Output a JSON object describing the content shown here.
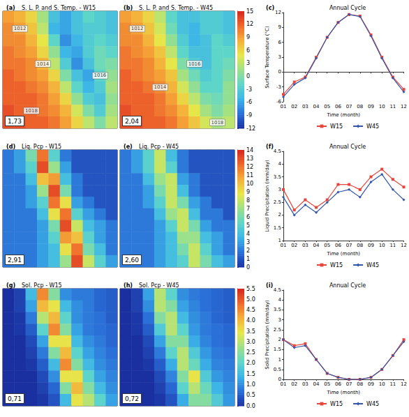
{
  "chart_data": [
    {
      "type": "heatmap",
      "title": "S. L. P. and S. Temp. - W15",
      "panel_label": "(a)",
      "mean_label": "1,73",
      "tick_labels": false,
      "colorbar": {
        "range": [
          -12,
          15
        ],
        "ticks": [
          -12,
          -9,
          -6,
          -3,
          0,
          3,
          6,
          9,
          12,
          15
        ]
      },
      "annotations": [
        {
          "x": 1,
          "y": 1,
          "text": "1012"
        },
        {
          "x": 3,
          "y": 4,
          "text": "1014"
        },
        {
          "x": 8,
          "y": 5,
          "text": "1016"
        },
        {
          "x": 2,
          "y": 8,
          "text": "1018"
        }
      ],
      "cells": [
        [
          9,
          8,
          6,
          2,
          -4,
          -6,
          -4,
          -2,
          -3,
          -4
        ],
        [
          10,
          9,
          7,
          3,
          -5,
          -6,
          -4,
          -3,
          -3,
          -4
        ],
        [
          10,
          10,
          8,
          5,
          -2,
          -7,
          -5,
          -3,
          -2,
          -3
        ],
        [
          11,
          10,
          9,
          6,
          1,
          -5,
          -6,
          -3,
          -1,
          -2
        ],
        [
          11,
          11,
          10,
          8,
          3,
          -3,
          -7,
          -4,
          -1,
          0
        ],
        [
          12,
          11,
          10,
          9,
          6,
          0,
          -4,
          -6,
          -2,
          1
        ],
        [
          12,
          12,
          11,
          10,
          8,
          3,
          -2,
          -5,
          -3,
          2
        ],
        [
          12,
          12,
          12,
          11,
          9,
          6,
          1,
          -3,
          -4,
          1
        ],
        [
          13,
          12,
          12,
          11,
          10,
          8,
          4,
          0,
          -3,
          2
        ],
        [
          13,
          13,
          12,
          12,
          11,
          9,
          6,
          3,
          0,
          3
        ]
      ]
    },
    {
      "type": "heatmap",
      "title": "S. L. P. and S. Temp. - W45",
      "panel_label": "(b)",
      "mean_label": "2,04",
      "tick_labels": false,
      "colorbar": {
        "range": [
          -12,
          15
        ],
        "ticks": [
          -12,
          -9,
          -6,
          -3,
          0,
          3,
          6,
          9,
          12,
          15
        ]
      },
      "annotations": [
        {
          "x": 1,
          "y": 1,
          "text": "1012"
        },
        {
          "x": 3,
          "y": 6,
          "text": "1014"
        },
        {
          "x": 6,
          "y": 4,
          "text": "1016"
        },
        {
          "x": 8,
          "y": 9,
          "text": "1018"
        }
      ],
      "cells": [
        [
          9,
          8,
          6,
          3,
          -2,
          -4,
          -4,
          -3,
          -3,
          -4
        ],
        [
          10,
          9,
          7,
          4,
          -1,
          -4,
          -5,
          -3,
          -3,
          -4
        ],
        [
          10,
          10,
          8,
          5,
          1,
          -3,
          -5,
          -4,
          -2,
          -3
        ],
        [
          11,
          10,
          9,
          7,
          3,
          -2,
          -4,
          -4,
          -2,
          -2
        ],
        [
          11,
          11,
          10,
          8,
          5,
          0,
          -3,
          -4,
          -2,
          -1
        ],
        [
          12,
          11,
          10,
          9,
          7,
          2,
          -1,
          -3,
          -2,
          0
        ],
        [
          12,
          12,
          11,
          10,
          8,
          4,
          1,
          -2,
          -2,
          1
        ],
        [
          12,
          12,
          12,
          11,
          9,
          6,
          3,
          0,
          -1,
          1
        ],
        [
          13,
          12,
          12,
          11,
          10,
          8,
          5,
          2,
          0,
          2
        ],
        [
          13,
          13,
          12,
          12,
          11,
          9,
          7,
          4,
          2,
          3
        ]
      ]
    },
    {
      "type": "line",
      "title": "Annual Cycle",
      "panel_label": "(c)",
      "x_label": "Time (month)",
      "y_label": "Surface Temperature (°C)",
      "categories": [
        "01",
        "02",
        "03",
        "04",
        "05",
        "06",
        "07",
        "08",
        "09",
        "10",
        "11",
        "12"
      ],
      "series": [
        {
          "name": "W15",
          "color": "#e8463c",
          "marker": "square",
          "values": [
            -4.5,
            -2,
            -1,
            3,
            7,
            10,
            11.6,
            11.3,
            7.5,
            3,
            -1,
            -3.5
          ]
        },
        {
          "name": "W45",
          "color": "#3355aa",
          "marker": "diamond",
          "values": [
            -5,
            -2.5,
            -1.2,
            2.8,
            7,
            10,
            11.6,
            11.2,
            7.3,
            2.8,
            -1.2,
            -4
          ]
        }
      ],
      "ylim": [
        -6,
        12
      ],
      "yticks": [
        -6,
        -3,
        0,
        3,
        6,
        9,
        12
      ],
      "legend": "bottom",
      "grid": false
    },
    {
      "type": "heatmap",
      "title": "Liq. Pcp - W15",
      "panel_label": "(d)",
      "mean_label": "2,91",
      "tick_labels": false,
      "colorbar": {
        "range": [
          0,
          14
        ],
        "ticks": [
          0,
          1,
          2,
          3,
          4,
          5,
          6,
          7,
          8,
          9,
          10,
          11,
          12,
          13,
          14
        ]
      },
      "cells": [
        [
          2,
          3,
          6,
          12,
          5,
          2,
          1,
          1,
          1,
          1
        ],
        [
          2,
          3,
          5,
          13,
          7,
          3,
          1,
          1,
          1,
          1
        ],
        [
          2,
          2,
          4,
          10,
          11,
          4,
          2,
          1,
          1,
          1
        ],
        [
          2,
          2,
          3,
          7,
          13,
          6,
          2,
          1,
          1,
          1
        ],
        [
          2,
          2,
          3,
          5,
          12,
          9,
          3,
          2,
          1,
          1
        ],
        [
          2,
          2,
          2,
          4,
          9,
          12,
          5,
          3,
          2,
          1
        ],
        [
          2,
          2,
          2,
          3,
          6,
          13,
          8,
          4,
          3,
          2
        ],
        [
          2,
          2,
          2,
          3,
          5,
          11,
          10,
          5,
          3,
          2
        ],
        [
          2,
          2,
          2,
          3,
          4,
          9,
          12,
          6,
          4,
          2
        ],
        [
          2,
          2,
          2,
          3,
          4,
          7,
          13,
          8,
          5,
          3
        ]
      ]
    },
    {
      "type": "heatmap",
      "title": "Liq. Pcp - W45",
      "panel_label": "(e)",
      "mean_label": "2,60",
      "tick_labels": false,
      "colorbar": {
        "range": [
          0,
          14
        ],
        "ticks": [
          0,
          1,
          2,
          3,
          4,
          5,
          6,
          7,
          8,
          9,
          10,
          11,
          12,
          13,
          14
        ]
      },
      "cells": [
        [
          2,
          3,
          5,
          8,
          4,
          2,
          1,
          1,
          1,
          1
        ],
        [
          2,
          3,
          5,
          8,
          5,
          2,
          1,
          1,
          1,
          1
        ],
        [
          2,
          2,
          4,
          7,
          8,
          3,
          2,
          1,
          1,
          1
        ],
        [
          2,
          2,
          3,
          6,
          8,
          4,
          2,
          1,
          1,
          1
        ],
        [
          2,
          2,
          3,
          5,
          8,
          6,
          3,
          2,
          1,
          1
        ],
        [
          2,
          2,
          2,
          4,
          7,
          8,
          4,
          2,
          2,
          1
        ],
        [
          2,
          2,
          2,
          3,
          5,
          8,
          6,
          3,
          2,
          2
        ],
        [
          2,
          2,
          2,
          3,
          4,
          7,
          7,
          4,
          3,
          2
        ],
        [
          2,
          2,
          2,
          3,
          4,
          6,
          8,
          5,
          3,
          2
        ],
        [
          2,
          2,
          2,
          3,
          4,
          5,
          8,
          6,
          4,
          3
        ]
      ]
    },
    {
      "type": "line",
      "title": "Annual Cycle",
      "panel_label": "(f)",
      "x_label": "Time (month)",
      "y_label": "Liquid Precipitation (mm/day)",
      "categories": [
        "01",
        "02",
        "03",
        "04",
        "05",
        "06",
        "07",
        "08",
        "09",
        "10",
        "11",
        "12"
      ],
      "series": [
        {
          "name": "W15",
          "color": "#e8463c",
          "marker": "square",
          "values": [
            3.0,
            2.2,
            2.6,
            2.3,
            2.6,
            3.2,
            3.2,
            3.0,
            3.5,
            3.8,
            3.4,
            3.1
          ]
        },
        {
          "name": "W45",
          "color": "#3355aa",
          "marker": "diamond",
          "values": [
            2.7,
            2.0,
            2.4,
            2.1,
            2.5,
            2.9,
            3.0,
            2.7,
            3.3,
            3.6,
            3.0,
            2.6
          ]
        }
      ],
      "ylim": [
        1,
        4.5
      ],
      "yticks": [
        1,
        1.5,
        2,
        2.5,
        3,
        3.5,
        4,
        4.5
      ],
      "legend": "bottom",
      "grid": false
    },
    {
      "type": "heatmap",
      "title": "Sol. Pcp - W15",
      "panel_label": "(g)",
      "mean_label": "0,71",
      "tick_labels": false,
      "colorbar": {
        "range": [
          0,
          5.5
        ],
        "ticks": [
          {
            "value": 0,
            "label": "0.0"
          },
          0.5,
          {
            "value": 1,
            "label": "1.0"
          },
          1.5,
          {
            "value": 2,
            "label": "2.0"
          },
          2.5,
          {
            "value": 3,
            "label": "3.0"
          },
          3.5,
          {
            "value": 4,
            "label": "4.0"
          },
          4.5,
          {
            "value": 5,
            "label": "5.0"
          },
          5.5
        ]
      },
      "cells": [
        [
          0,
          0.2,
          1.5,
          4.5,
          2.5,
          1,
          0.8,
          0.8,
          0.6,
          0.5
        ],
        [
          0,
          0.2,
          1.2,
          4,
          3.5,
          1.5,
          1,
          0.8,
          0.6,
          0.5
        ],
        [
          0,
          0.1,
          0.8,
          3,
          4,
          2,
          1,
          0.8,
          0.7,
          0.5
        ],
        [
          0,
          0.1,
          0.5,
          2,
          4.5,
          2.5,
          1.2,
          0.8,
          0.7,
          0.6
        ],
        [
          0,
          0,
          0.3,
          1.2,
          3.5,
          3.5,
          1.5,
          1,
          0.8,
          0.6
        ],
        [
          0,
          0,
          0.2,
          0.8,
          2.5,
          4,
          2,
          1.2,
          0.9,
          0.7
        ],
        [
          0,
          0,
          0.1,
          0.5,
          1.5,
          4.5,
          2.5,
          1.5,
          1,
          0.8
        ],
        [
          0,
          0,
          0,
          0.3,
          1,
          3.5,
          3.5,
          2,
          1.2,
          0.9
        ],
        [
          0,
          0,
          0,
          0.2,
          0.6,
          2.5,
          4,
          2.5,
          1.5,
          1
        ],
        [
          0,
          0,
          0,
          0.1,
          0.4,
          1.5,
          3.5,
          3,
          2,
          1.2
        ]
      ]
    },
    {
      "type": "heatmap",
      "title": "Sol. Pcp - W45",
      "panel_label": "(h)",
      "mean_label": "0,72",
      "tick_labels": false,
      "colorbar": {
        "range": [
          0,
          5.5
        ],
        "ticks": [
          {
            "value": 0,
            "label": "0.0"
          },
          0.5,
          {
            "value": 1,
            "label": "1.0"
          },
          1.5,
          {
            "value": 2,
            "label": "2.0"
          },
          2.5,
          {
            "value": 3,
            "label": "3.0"
          },
          3.5,
          {
            "value": 4,
            "label": "4.0"
          },
          4.5,
          {
            "value": 5,
            "label": "5.0"
          },
          5.5
        ]
      },
      "cells": [
        [
          0,
          0.2,
          1.2,
          3,
          2,
          1,
          0.8,
          0.7,
          0.6,
          0.5
        ],
        [
          0,
          0.2,
          1,
          3,
          2.5,
          1.2,
          0.9,
          0.7,
          0.6,
          0.5
        ],
        [
          0,
          0.1,
          0.7,
          2.5,
          3,
          1.5,
          1,
          0.8,
          0.6,
          0.5
        ],
        [
          0,
          0.1,
          0.5,
          1.8,
          3,
          2,
          1.1,
          0.8,
          0.7,
          0.6
        ],
        [
          0,
          0,
          0.3,
          1.2,
          2.5,
          2.5,
          1.3,
          0.9,
          0.7,
          0.6
        ],
        [
          0,
          0,
          0.2,
          0.8,
          2,
          3,
          1.8,
          1.1,
          0.8,
          0.7
        ],
        [
          0,
          0,
          0.1,
          0.5,
          1.3,
          3,
          2.2,
          1.3,
          0.9,
          0.8
        ],
        [
          0,
          0,
          0,
          0.3,
          0.9,
          2.5,
          3.5,
          1.8,
          1.1,
          0.9
        ],
        [
          0,
          0,
          0,
          0.2,
          0.6,
          2,
          3,
          2.2,
          1.4,
          1
        ],
        [
          0,
          0,
          0,
          0.1,
          0.4,
          1.3,
          2.5,
          2.5,
          1.8,
          1.1
        ]
      ]
    },
    {
      "type": "line",
      "title": "Annual Cycle",
      "panel_label": "(i)",
      "x_label": "Time (month)",
      "y_label": "Solid Precipitation (mm/day)",
      "categories": [
        "01",
        "02",
        "03",
        "04",
        "05",
        "06",
        "07",
        "08",
        "09",
        "10",
        "11",
        "12"
      ],
      "series": [
        {
          "name": "W15",
          "color": "#e8463c",
          "marker": "square",
          "values": [
            2.0,
            1.7,
            1.8,
            1.0,
            0.3,
            0.1,
            0,
            0,
            0.1,
            0.5,
            1.2,
            2.0
          ]
        },
        {
          "name": "W45",
          "color": "#3355aa",
          "marker": "diamond",
          "values": [
            2.0,
            1.6,
            1.7,
            1.0,
            0.3,
            0.1,
            0,
            0,
            0.1,
            0.5,
            1.2,
            1.9
          ]
        }
      ],
      "ylim": [
        0,
        4.5
      ],
      "yticks": [
        0,
        0.5,
        1,
        1.5,
        2,
        2.5,
        3,
        3.5,
        4,
        4.5
      ],
      "legend": "bottom",
      "grid": false
    }
  ]
}
